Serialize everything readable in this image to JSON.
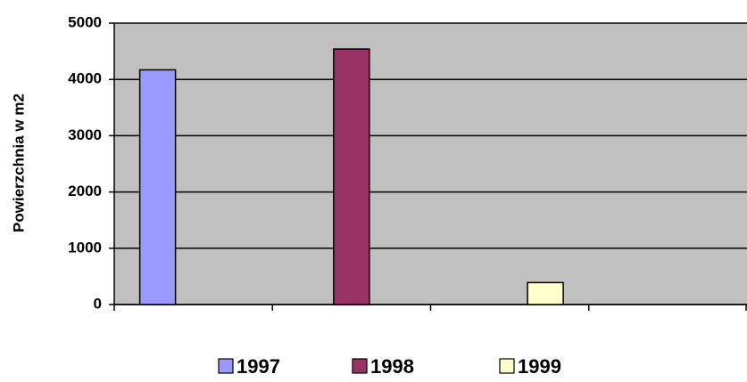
{
  "chart_data": {
    "type": "bar",
    "y_label": "Powierzchnia w m2",
    "categories": [
      null,
      null,
      null,
      null
    ],
    "series": [
      {
        "name": "1997",
        "color": "#9999ff",
        "values": [
          4170,
          null,
          null,
          null
        ]
      },
      {
        "name": "1998",
        "color": "#993366",
        "values": [
          null,
          4540,
          null,
          null
        ]
      },
      {
        "name": "1999",
        "color": "#ffffcc",
        "values": [
          null,
          null,
          390,
          null
        ]
      }
    ],
    "ylim": [
      0,
      5000
    ],
    "yticks": [
      0,
      1000,
      2000,
      3000,
      4000,
      5000
    ],
    "grid": true,
    "legend": "bottom",
    "plot_background": "#c0c0c0"
  }
}
